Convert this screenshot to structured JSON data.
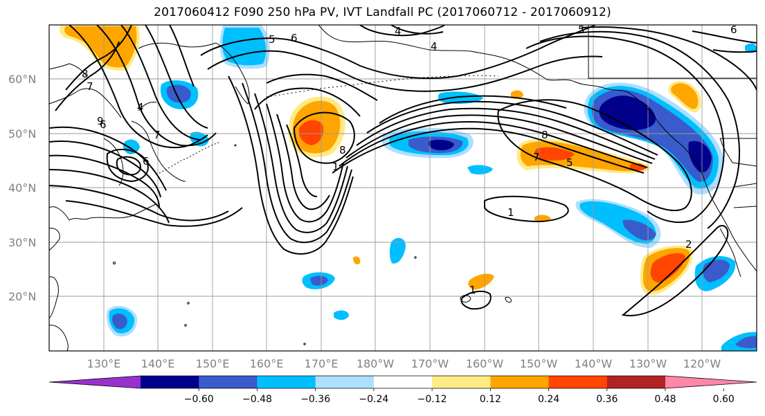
{
  "title": "2017060412 F090 250 hPa PV, IVT Landfall PC (2017060712 - 2017060912)",
  "map": {
    "projection": "PlateCarree",
    "lon_range_east": [
      120,
      250
    ],
    "lat_range": [
      10,
      70
    ],
    "gridlines": true,
    "lat_ticks": [
      "20°N",
      "30°N",
      "40°N",
      "50°N",
      "60°N"
    ],
    "lon_ticks": [
      "130°E",
      "140°E",
      "150°E",
      "160°E",
      "170°E",
      "180°W",
      "170°W",
      "160°W",
      "150°W",
      "140°W",
      "130°W",
      "120°W"
    ],
    "contour_labels": [
      "8",
      "7",
      "6",
      "5",
      "6",
      "4",
      "4",
      "5",
      "6",
      "8",
      "1",
      "8",
      "7",
      "5",
      "1",
      "6",
      "9",
      "7",
      "4",
      "1",
      "2"
    ]
  },
  "colorbar": {
    "orientation": "horizontal",
    "extend": "both",
    "tick_labels": [
      "−0.60",
      "−0.48",
      "−0.36",
      "−0.24",
      "−0.12",
      "0.12",
      "0.24",
      "0.36",
      "0.48",
      "0.60"
    ],
    "levels": [
      -0.6,
      -0.48,
      -0.36,
      -0.24,
      -0.12,
      0.12,
      0.24,
      0.36,
      0.48,
      0.6
    ],
    "colors": [
      "#9932CC",
      "#00008B",
      "#3A5BCB",
      "#00BFFF",
      "#ADDFFF",
      "#FFFFFF",
      "#FFEB84",
      "#FFA500",
      "#FF4500",
      "#B22222",
      "#FF88AA"
    ]
  },
  "colors": {
    "contour": "#000000",
    "gridline": "#9a9a9a",
    "coast": "#000000",
    "tick_label": "#808080"
  }
}
